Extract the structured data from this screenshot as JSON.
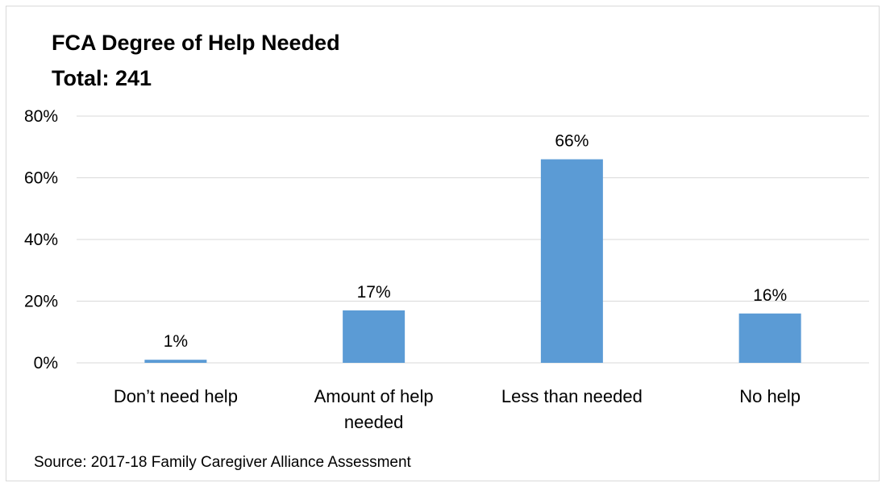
{
  "chart_data": {
    "type": "bar",
    "title_line1": "FCA Degree of Help Needed",
    "title_line2": "Total: 241",
    "categories": [
      [
        "Don’t need help"
      ],
      [
        "Amount of help",
        "needed"
      ],
      [
        "Less than needed"
      ],
      [
        "No help"
      ]
    ],
    "values": [
      1,
      17,
      66,
      16
    ],
    "data_labels": [
      "1%",
      "17%",
      "66%",
      "16%"
    ],
    "yticks": [
      0,
      20,
      40,
      60,
      80
    ],
    "ytick_labels": [
      "0%",
      "20%",
      "40%",
      "60%",
      "80%"
    ],
    "ylim": [
      0,
      80
    ],
    "grid": true,
    "legend": "none",
    "bar_color": "#5B9BD5",
    "gridline_color": "#d9d9d9",
    "source": "Source: 2017-18 Family Caregiver Alliance Assessment"
  }
}
